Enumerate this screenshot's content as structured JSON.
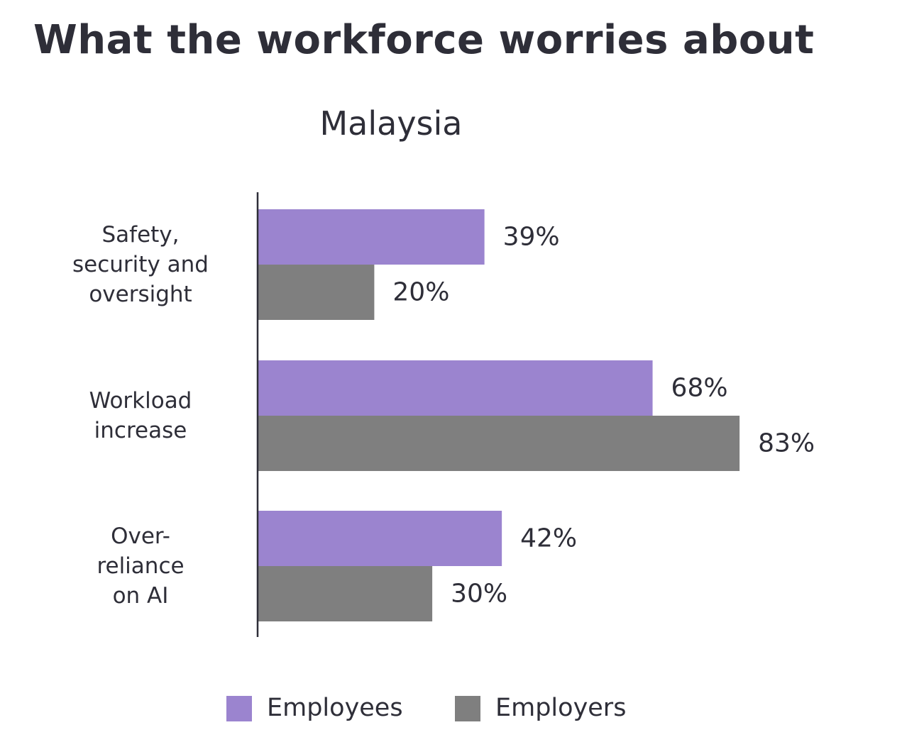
{
  "title": "What the workforce worries about",
  "chart_data": {
    "type": "bar",
    "orientation": "horizontal",
    "subtitle": "Malaysia",
    "categories": [
      [
        "Safety,",
        "security and",
        "oversight"
      ],
      [
        "Workload",
        "increase"
      ],
      [
        "Over-",
        "reliance",
        "on AI"
      ]
    ],
    "series": [
      {
        "name": "Employees",
        "values": [
          39,
          68,
          42
        ],
        "labels": [
          "39%",
          "68%",
          "42%"
        ],
        "color": "#9b84cf"
      },
      {
        "name": "Employers",
        "values": [
          20,
          83,
          30
        ],
        "labels": [
          "20%",
          "83%",
          "30%"
        ],
        "color": "#7f7f7f"
      }
    ],
    "xlim": [
      0,
      100
    ],
    "grid": false,
    "legend_position": "bottom"
  }
}
